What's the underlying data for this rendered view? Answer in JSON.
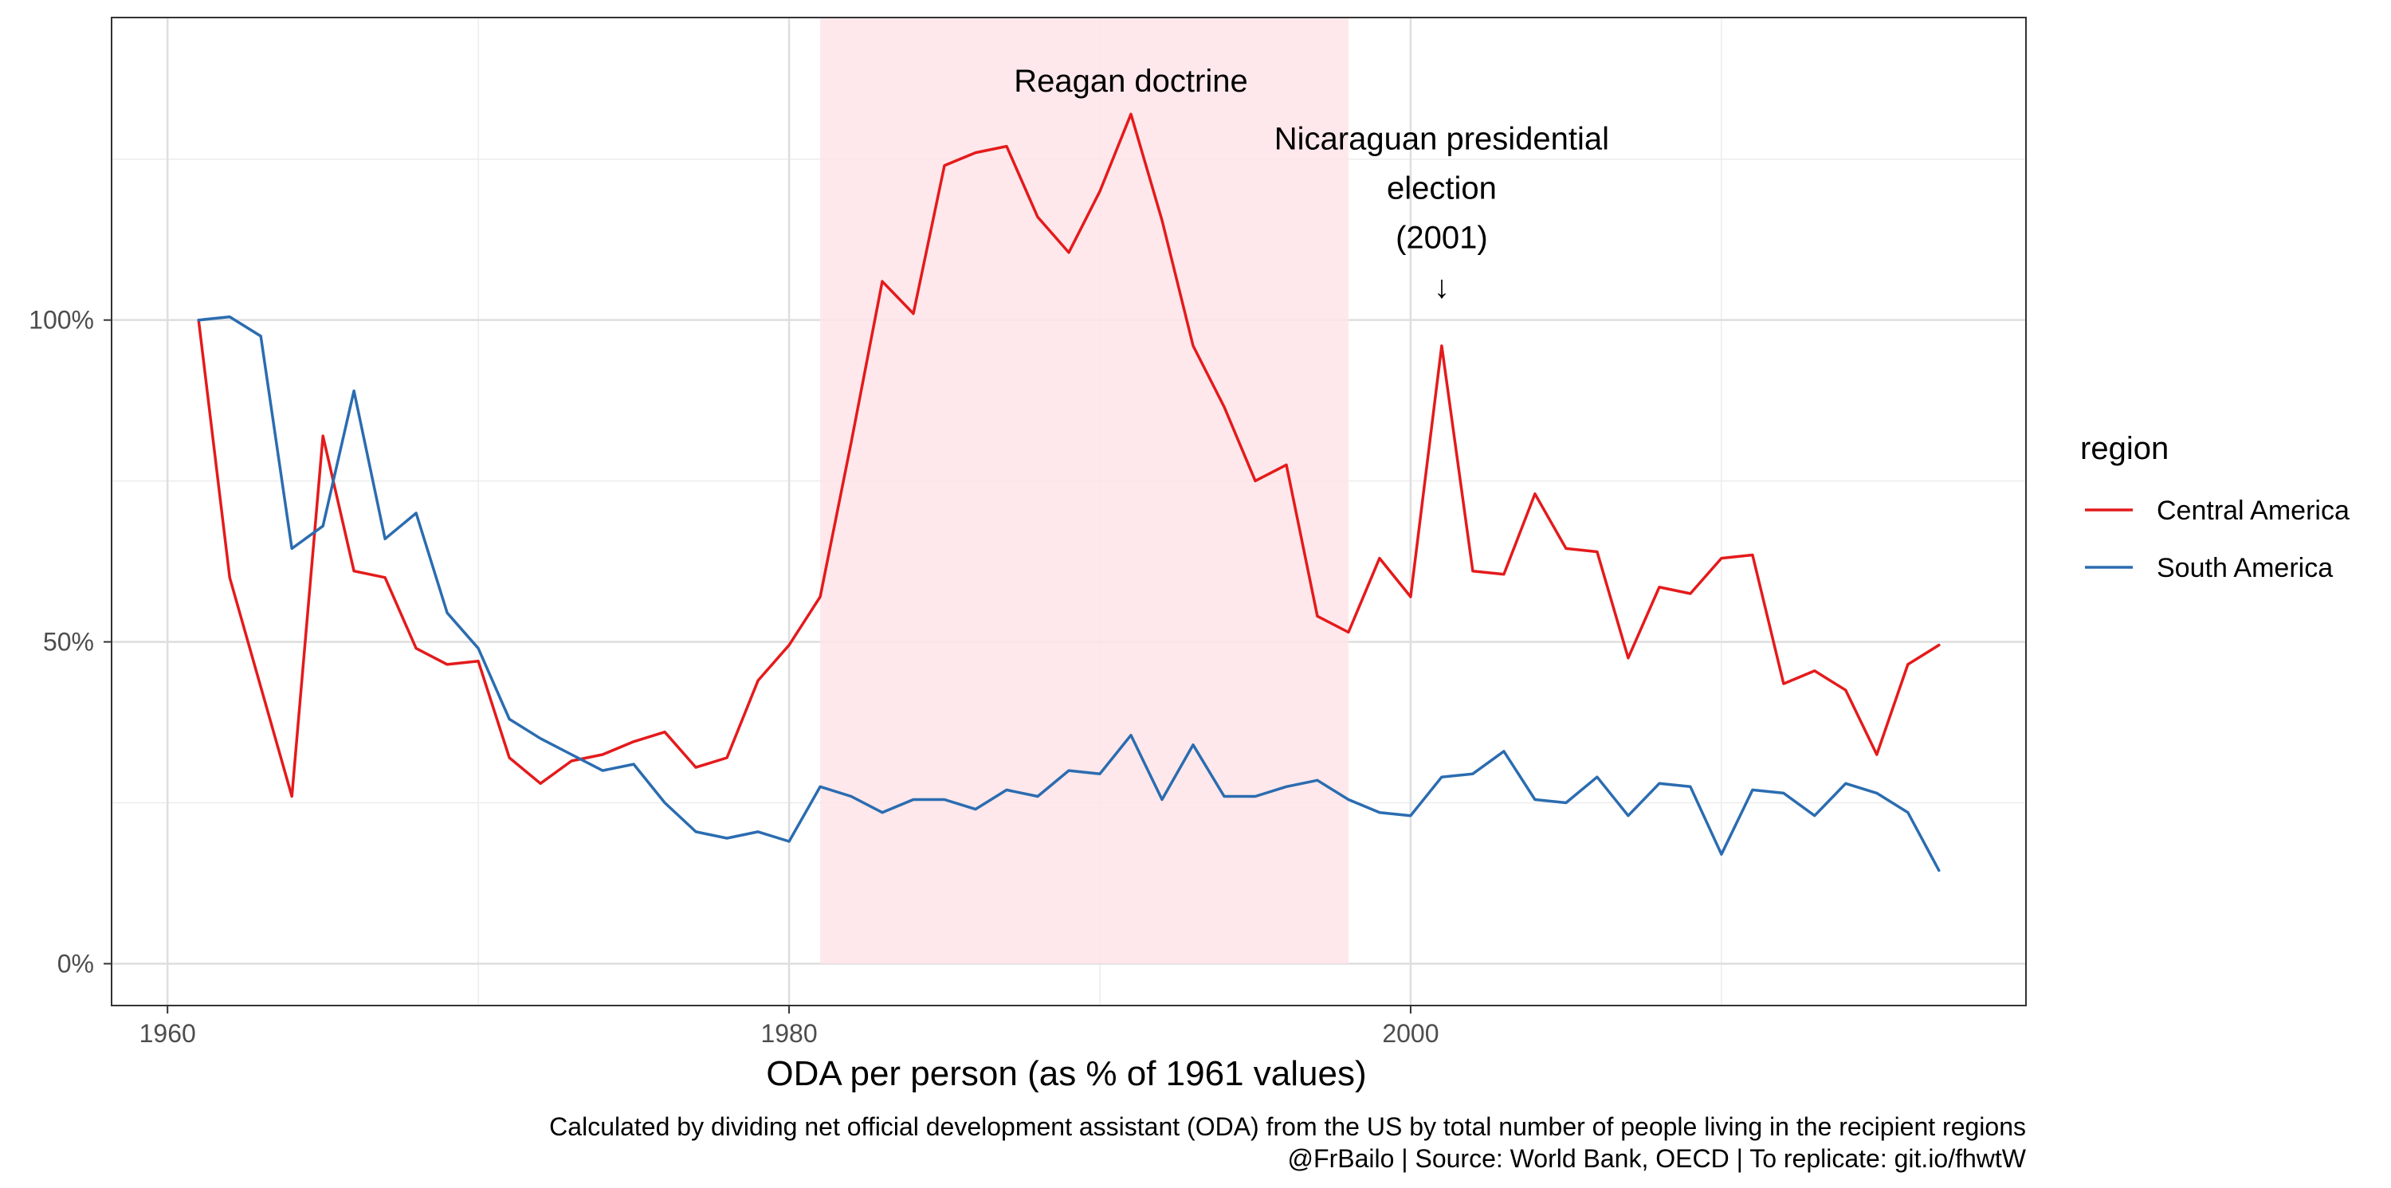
{
  "chart_data": {
    "type": "line",
    "title": "",
    "xlabel": "ODA per person (as % of 1961 values)",
    "ylabel": "",
    "xlim": [
      1958.2,
      2019.8
    ],
    "ylim": [
      -6.5,
      147
    ],
    "x_ticks": [
      1960,
      1980,
      2000
    ],
    "x_tick_labels": [
      "1960",
      "1980",
      "2000"
    ],
    "y_ticks": [
      0,
      50,
      100
    ],
    "y_tick_labels": [
      "0%",
      "50%",
      "100%"
    ],
    "grid": true,
    "legend": {
      "title": "region",
      "position": "right",
      "entries": [
        "Central America",
        "South America"
      ]
    },
    "series": [
      {
        "name": "Central America",
        "color": "#e41a1c",
        "x": [
          1961,
          1962,
          1963,
          1964,
          1965,
          1966,
          1967,
          1968,
          1969,
          1970,
          1971,
          1972,
          1973,
          1974,
          1975,
          1976,
          1977,
          1978,
          1979,
          1980,
          1981,
          1982,
          1983,
          1984,
          1985,
          1986,
          1987,
          1988,
          1989,
          1990,
          1991,
          1992,
          1993,
          1994,
          1995,
          1996,
          1997,
          1998,
          1999,
          2000,
          2001,
          2002,
          2003,
          2004,
          2005,
          2006,
          2007,
          2008,
          2009,
          2010,
          2011,
          2012,
          2013,
          2014,
          2015,
          2016,
          2017
        ],
        "values": [
          100,
          60,
          43,
          26,
          82,
          61,
          60,
          49,
          46.5,
          47,
          32,
          28,
          31.5,
          32.5,
          34.5,
          36,
          30.5,
          32,
          44,
          49.5,
          57,
          81,
          106,
          101,
          124,
          126,
          127,
          116,
          110.5,
          120,
          132,
          115.5,
          96,
          86.5,
          75,
          77.5,
          54,
          51.5,
          63,
          57,
          96,
          61,
          60.5,
          73,
          64.5,
          64,
          47.5,
          58.5,
          57.5,
          63,
          63.5,
          43.5,
          45.5,
          42.5,
          32.5,
          46.5,
          49.5
        ]
      },
      {
        "name": "South America",
        "color": "#2b6cb0",
        "x": [
          1961,
          1962,
          1963,
          1964,
          1965,
          1966,
          1967,
          1968,
          1969,
          1970,
          1971,
          1972,
          1973,
          1974,
          1975,
          1976,
          1977,
          1978,
          1979,
          1980,
          1981,
          1982,
          1983,
          1984,
          1985,
          1986,
          1987,
          1988,
          1989,
          1990,
          1991,
          1992,
          1993,
          1994,
          1995,
          1996,
          1997,
          1998,
          1999,
          2000,
          2001,
          2002,
          2003,
          2004,
          2005,
          2006,
          2007,
          2008,
          2009,
          2010,
          2011,
          2012,
          2013,
          2014,
          2015,
          2016,
          2017
        ],
        "values": [
          100,
          100.5,
          97.5,
          64.5,
          68,
          89,
          66,
          70,
          54.5,
          49,
          38,
          35,
          32.5,
          30,
          31,
          25,
          20.5,
          19.5,
          20.5,
          19,
          27.5,
          26,
          23.5,
          25.5,
          25.5,
          24,
          27,
          26,
          30,
          29.5,
          35.5,
          25.5,
          34,
          26,
          26,
          27.5,
          28.5,
          25.5,
          23.5,
          23,
          29,
          29.5,
          33,
          25.5,
          25,
          29,
          23,
          28,
          27.5,
          17,
          27,
          26.5,
          23,
          28,
          26.5,
          23.5,
          14.5
        ]
      }
    ],
    "shaded_region": {
      "x_start": 1981,
      "x_end": 1998,
      "y_start": 0,
      "y_end": 147,
      "color": "#ffe4e8"
    },
    "annotations": [
      {
        "lines": [
          "Reagan doctrine"
        ],
        "x": 1991,
        "y": 135.5
      },
      {
        "lines": [
          "Nicaraguan presidential",
          "election",
          "(2001)",
          "↓"
        ],
        "x": 2001,
        "y": 126.5
      }
    ]
  },
  "caption": {
    "line1": "Calculated by dividing net official development assistant (ODA) from the US by total number of people living in the recipient regions",
    "line2": "@FrBailo | Source: World Bank, OECD | To replicate: git.io/fhwtW"
  }
}
